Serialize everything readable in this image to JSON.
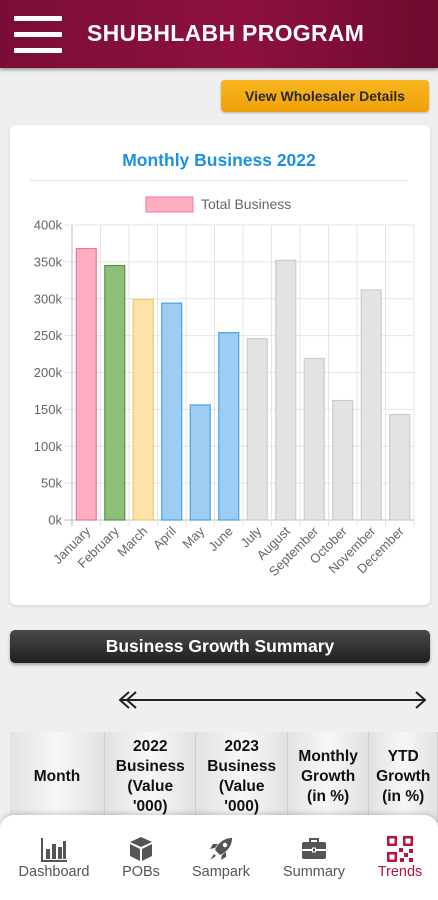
{
  "header": {
    "title": "SHUBHLABH PROGRAM"
  },
  "actions": {
    "wholesaler_button": "View Wholesaler Details"
  },
  "chart_data": {
    "type": "bar",
    "title": "Monthly Business 2022",
    "legend": {
      "label": "Total Business",
      "position": "top",
      "color": "#ffadc0"
    },
    "categories": [
      "January",
      "February",
      "March",
      "April",
      "May",
      "June",
      "July",
      "August",
      "September",
      "October",
      "November",
      "December"
    ],
    "series": [
      {
        "name": "Total Business",
        "values": [
          368000,
          345000,
          299000,
          294000,
          156000,
          254000,
          246000,
          352000,
          219000,
          162000,
          312000,
          143000
        ]
      }
    ],
    "bar_colors": [
      "#ffadc0",
      "#8cc078",
      "#ffe2a8",
      "#9dcdf2",
      "#9dcdf2",
      "#9dcdf2",
      "#e3e3e3",
      "#e3e3e3",
      "#e3e3e3",
      "#e3e3e3",
      "#e3e3e3",
      "#e3e3e3"
    ],
    "bar_borders": [
      "#f0769a",
      "#4f9a3f",
      "#f3c66e",
      "#4aa3e6",
      "#4aa3e6",
      "#4aa3e6",
      "#cccccc",
      "#cccccc",
      "#cccccc",
      "#cccccc",
      "#cccccc",
      "#cccccc"
    ],
    "y_ticks": [
      "0k",
      "50k",
      "100k",
      "150k",
      "200k",
      "250k",
      "300k",
      "350k",
      "400k"
    ],
    "ylim": [
      0,
      400000
    ],
    "grid": true
  },
  "summary": {
    "title": "Business Growth Summary",
    "columns": [
      "Month",
      "2022 Business (Value '000)",
      "2023 Business (Value '000)",
      "Monthly Growth (in %)",
      "YTD Growth (in %)"
    ]
  },
  "nav": {
    "items": [
      {
        "label": "Dashboard",
        "icon": "bar-chart-icon"
      },
      {
        "label": "POBs",
        "icon": "box-icon"
      },
      {
        "label": "Sampark",
        "icon": "rocket-icon"
      },
      {
        "label": "Summary",
        "icon": "briefcase-icon"
      },
      {
        "label": "Trends",
        "icon": "qr-code-icon"
      }
    ],
    "colors": {
      "default": "#555555",
      "active": "#b3163f"
    }
  }
}
